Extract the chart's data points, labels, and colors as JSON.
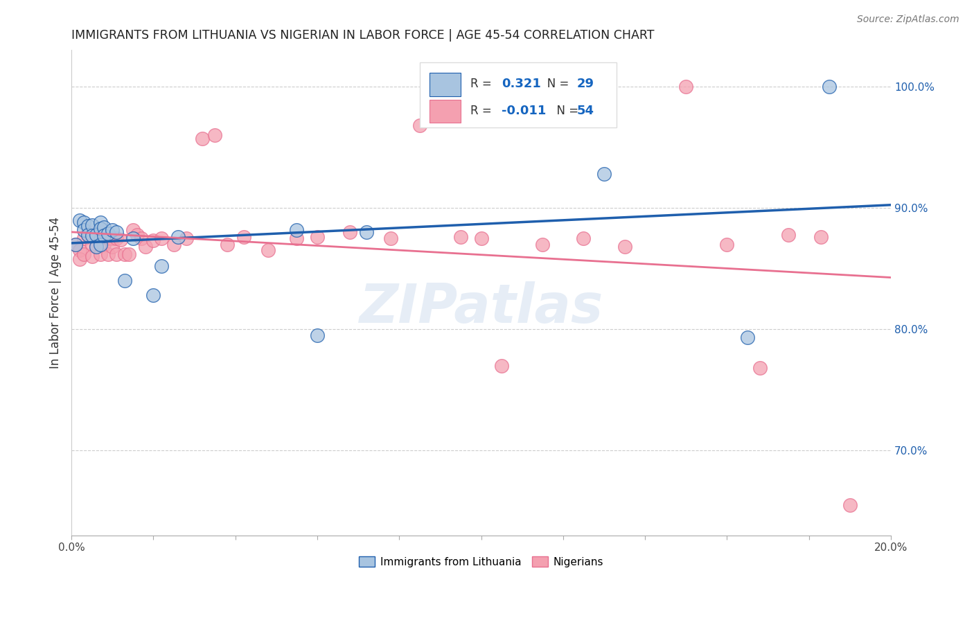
{
  "title": "IMMIGRANTS FROM LITHUANIA VS NIGERIAN IN LABOR FORCE | AGE 45-54 CORRELATION CHART",
  "source": "Source: ZipAtlas.com",
  "ylabel": "In Labor Force | Age 45-54",
  "xmin": 0.0,
  "xmax": 0.2,
  "ymin": 0.63,
  "ymax": 1.03,
  "legend_blue_r": "0.321",
  "legend_blue_n": "29",
  "legend_pink_r": "-0.011",
  "legend_pink_n": "54",
  "blue_color": "#A8C4E0",
  "pink_color": "#F4A0B0",
  "blue_line_color": "#1F5FAD",
  "pink_line_color": "#E87090",
  "legend_r_color": "#1565C0",
  "title_color": "#222222",
  "source_color": "#777777",
  "blue_scatter_x": [
    0.001,
    0.002,
    0.003,
    0.003,
    0.004,
    0.004,
    0.005,
    0.005,
    0.006,
    0.006,
    0.007,
    0.007,
    0.007,
    0.008,
    0.008,
    0.009,
    0.01,
    0.011,
    0.013,
    0.015,
    0.02,
    0.022,
    0.026,
    0.055,
    0.06,
    0.072,
    0.13,
    0.165,
    0.185
  ],
  "blue_scatter_y": [
    0.87,
    0.89,
    0.888,
    0.882,
    0.885,
    0.878,
    0.886,
    0.877,
    0.878,
    0.868,
    0.888,
    0.883,
    0.87,
    0.884,
    0.877,
    0.879,
    0.882,
    0.88,
    0.84,
    0.875,
    0.828,
    0.852,
    0.876,
    0.882,
    0.795,
    0.88,
    0.928,
    0.793,
    1.0
  ],
  "pink_scatter_x": [
    0.001,
    0.002,
    0.002,
    0.003,
    0.003,
    0.004,
    0.004,
    0.005,
    0.005,
    0.006,
    0.006,
    0.007,
    0.007,
    0.008,
    0.008,
    0.009,
    0.009,
    0.01,
    0.01,
    0.011,
    0.011,
    0.012,
    0.013,
    0.014,
    0.015,
    0.016,
    0.017,
    0.018,
    0.02,
    0.022,
    0.025,
    0.028,
    0.032,
    0.035,
    0.038,
    0.042,
    0.048,
    0.055,
    0.06,
    0.068,
    0.078,
    0.085,
    0.095,
    0.1,
    0.105,
    0.115,
    0.125,
    0.135,
    0.15,
    0.16,
    0.168,
    0.175,
    0.183,
    0.19
  ],
  "pink_scatter_y": [
    0.87,
    0.865,
    0.858,
    0.875,
    0.862,
    0.88,
    0.878,
    0.87,
    0.86,
    0.878,
    0.868,
    0.875,
    0.862,
    0.878,
    0.87,
    0.875,
    0.862,
    0.875,
    0.868,
    0.875,
    0.862,
    0.874,
    0.862,
    0.862,
    0.882,
    0.878,
    0.875,
    0.868,
    0.873,
    0.875,
    0.87,
    0.875,
    0.957,
    0.96,
    0.87,
    0.876,
    0.865,
    0.875,
    0.876,
    0.88,
    0.875,
    0.968,
    0.876,
    0.875,
    0.77,
    0.87,
    0.875,
    0.868,
    1.0,
    0.87,
    0.768,
    0.878,
    0.876,
    0.655
  ],
  "watermark": "ZIPatlas"
}
